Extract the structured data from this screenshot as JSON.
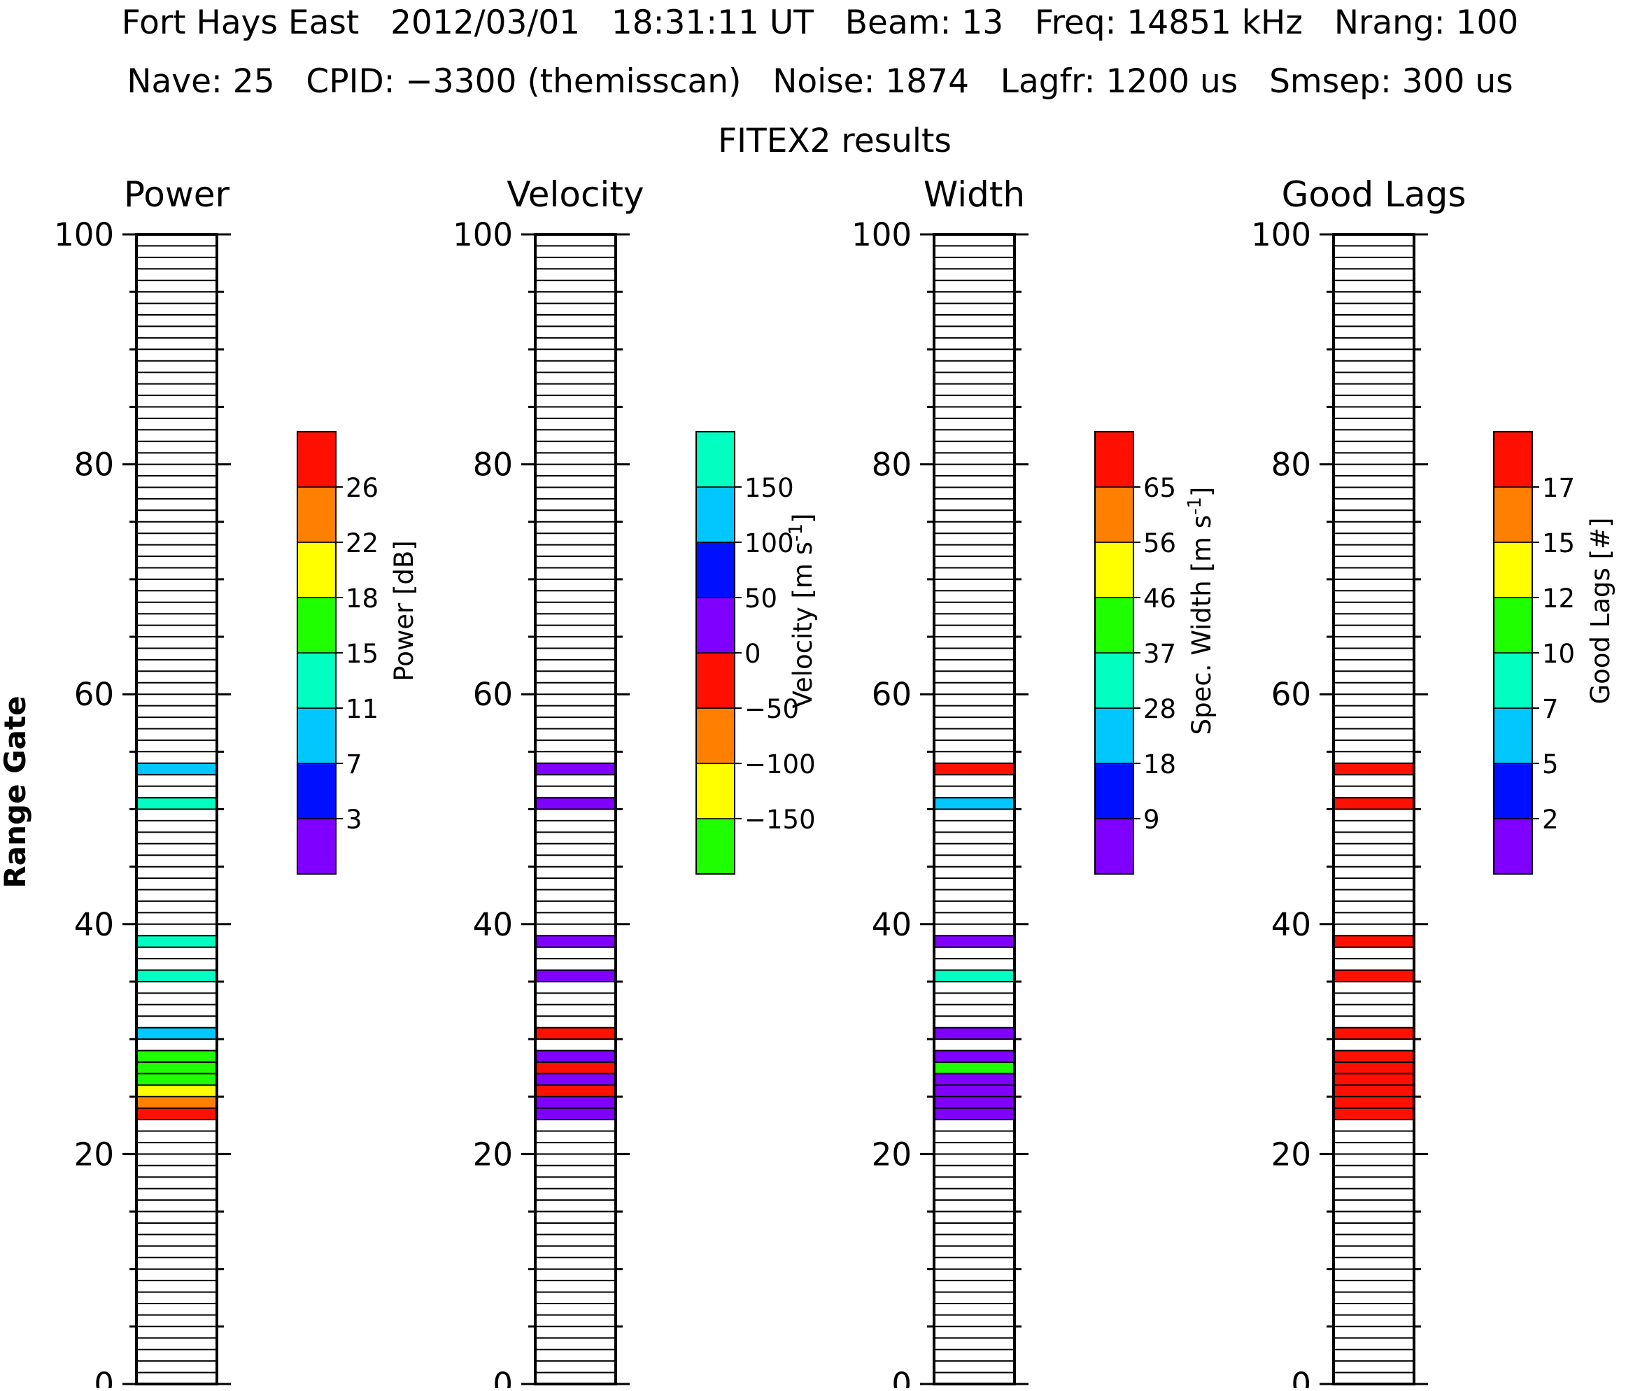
{
  "header": {
    "line1": "Fort Hays East   2012/03/01   18:31:11 UT   Beam: 13   Freq: 14851 kHz   Nrang: 100",
    "line2": "Nave: 25   CPID: −3300 (themisscan)   Noise: 1874   Lagfr: 1200 us   Smsep: 300 us",
    "subtitle": "FITEX2 results"
  },
  "colors": {
    "axis": "#000000",
    "background": "#ffffff",
    "scale": [
      "#8000ff",
      "#0010ff",
      "#00c8ff",
      "#00ffc0",
      "#20ff00",
      "#ffff00",
      "#ff8000",
      "#ff1000"
    ]
  },
  "chart_data": [
    {
      "type": "heatmap",
      "title": "Power",
      "ylabel": "Range Gate",
      "ylim": [
        0,
        100
      ],
      "yticks": [
        "0",
        "20",
        "40",
        "60",
        "80",
        "100"
      ],
      "cells": [
        {
          "gate": 23,
          "color": "#ff1000"
        },
        {
          "gate": 24,
          "color": "#ff8000"
        },
        {
          "gate": 25,
          "color": "#ffff00"
        },
        {
          "gate": 26,
          "color": "#20ff00"
        },
        {
          "gate": 27,
          "color": "#20ff00"
        },
        {
          "gate": 28,
          "color": "#20ff00"
        },
        {
          "gate": 30,
          "color": "#00c8ff"
        },
        {
          "gate": 35,
          "color": "#00ffc0"
        },
        {
          "gate": 38,
          "color": "#00ffc0"
        },
        {
          "gate": 50,
          "color": "#00ffc0"
        },
        {
          "gate": 53,
          "color": "#00c8ff"
        }
      ],
      "colorbar": {
        "label": "Power [dB]",
        "colors": [
          "#8000ff",
          "#0010ff",
          "#00c8ff",
          "#00ffc0",
          "#20ff00",
          "#ffff00",
          "#ff8000",
          "#ff1000"
        ],
        "ticks": [
          "3",
          "7",
          "11",
          "15",
          "18",
          "22",
          "26"
        ]
      }
    },
    {
      "type": "heatmap",
      "title": "Velocity",
      "ylim": [
        0,
        100
      ],
      "yticks": [
        "0",
        "20",
        "40",
        "60",
        "80",
        "100"
      ],
      "cells": [
        {
          "gate": 23,
          "color": "#8000ff"
        },
        {
          "gate": 24,
          "color": "#8000ff"
        },
        {
          "gate": 25,
          "color": "#ff1000"
        },
        {
          "gate": 26,
          "color": "#8000ff"
        },
        {
          "gate": 27,
          "color": "#ff1000"
        },
        {
          "gate": 28,
          "color": "#8000ff"
        },
        {
          "gate": 30,
          "color": "#ff1000"
        },
        {
          "gate": 35,
          "color": "#8000ff"
        },
        {
          "gate": 38,
          "color": "#8000ff"
        },
        {
          "gate": 50,
          "color": "#8000ff"
        },
        {
          "gate": 53,
          "color": "#8000ff"
        }
      ],
      "colorbar": {
        "label": "Velocity [m s",
        "label_sup": "-1",
        "label_end": "]",
        "colors": [
          "#20ff00",
          "#ffff00",
          "#ff8000",
          "#ff1000",
          "#8000ff",
          "#0010ff",
          "#00c8ff",
          "#00ffc0"
        ],
        "ticks": [
          "−150",
          "−100",
          "−50",
          "0",
          "50",
          "100",
          "150"
        ]
      }
    },
    {
      "type": "heatmap",
      "title": "Width",
      "ylim": [
        0,
        100
      ],
      "yticks": [
        "0",
        "20",
        "40",
        "60",
        "80",
        "100"
      ],
      "cells": [
        {
          "gate": 23,
          "color": "#8000ff"
        },
        {
          "gate": 24,
          "color": "#8000ff"
        },
        {
          "gate": 25,
          "color": "#8000ff"
        },
        {
          "gate": 26,
          "color": "#8000ff"
        },
        {
          "gate": 27,
          "color": "#20ff00"
        },
        {
          "gate": 28,
          "color": "#8000ff"
        },
        {
          "gate": 30,
          "color": "#8000ff"
        },
        {
          "gate": 35,
          "color": "#00ffc0"
        },
        {
          "gate": 38,
          "color": "#8000ff"
        },
        {
          "gate": 50,
          "color": "#00c8ff"
        },
        {
          "gate": 53,
          "color": "#ff1000"
        }
      ],
      "colorbar": {
        "label": "Spec. Width [m s",
        "label_sup": "-1",
        "label_end": "]",
        "colors": [
          "#8000ff",
          "#0010ff",
          "#00c8ff",
          "#00ffc0",
          "#20ff00",
          "#ffff00",
          "#ff8000",
          "#ff1000"
        ],
        "ticks": [
          "9",
          "18",
          "28",
          "37",
          "46",
          "56",
          "65"
        ]
      }
    },
    {
      "type": "heatmap",
      "title": "Good Lags",
      "ylim": [
        0,
        100
      ],
      "yticks": [
        "0",
        "20",
        "40",
        "60",
        "80",
        "100"
      ],
      "cells": [
        {
          "gate": 23,
          "color": "#ff1000"
        },
        {
          "gate": 24,
          "color": "#ff1000"
        },
        {
          "gate": 25,
          "color": "#ff1000"
        },
        {
          "gate": 26,
          "color": "#ff1000"
        },
        {
          "gate": 27,
          "color": "#ff1000"
        },
        {
          "gate": 28,
          "color": "#ff1000"
        },
        {
          "gate": 30,
          "color": "#ff1000"
        },
        {
          "gate": 35,
          "color": "#ff1000"
        },
        {
          "gate": 38,
          "color": "#ff1000"
        },
        {
          "gate": 50,
          "color": "#ff1000"
        },
        {
          "gate": 53,
          "color": "#ff1000"
        }
      ],
      "colorbar": {
        "label": "Good Lags [#]",
        "colors": [
          "#8000ff",
          "#0010ff",
          "#00c8ff",
          "#00ffc0",
          "#20ff00",
          "#ffff00",
          "#ff8000",
          "#ff1000"
        ],
        "ticks": [
          "2",
          "5",
          "7",
          "10",
          "12",
          "15",
          "17"
        ]
      }
    }
  ]
}
